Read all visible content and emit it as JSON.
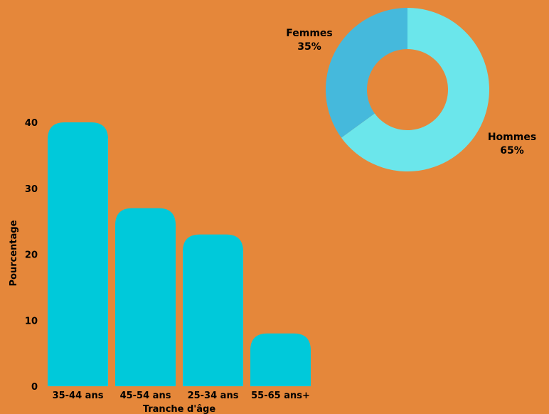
{
  "colors": {
    "background": "#E5873A",
    "bar": "#00C9DA",
    "donut_hommes": "#6BE6EB",
    "donut_femmes": "#45B9DC",
    "text": "#000000"
  },
  "chart_data": [
    {
      "type": "bar",
      "categories": [
        "35-44 ans",
        "45-54 ans",
        "25-34 ans",
        "55-65 ans+"
      ],
      "values": [
        40,
        27,
        23,
        8
      ],
      "xlabel": "Tranche d'âge",
      "ylabel": "Pourcentage",
      "ylim": [
        0,
        40
      ],
      "yticks": [
        "0",
        "10",
        "20",
        "30",
        "40"
      ],
      "grid": false
    },
    {
      "type": "pie",
      "donut": true,
      "slices": [
        {
          "label": "Hommes",
          "value": 65,
          "display": "65%"
        },
        {
          "label": "Femmes",
          "value": 35,
          "display": "35%"
        }
      ]
    }
  ]
}
